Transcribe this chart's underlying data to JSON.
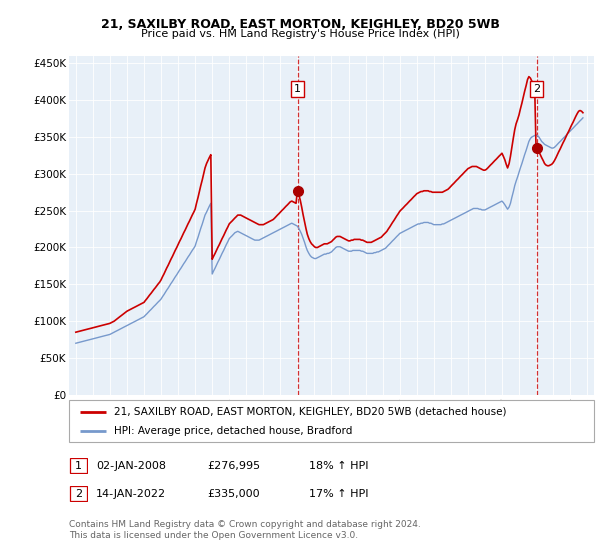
{
  "title": "21, SAXILBY ROAD, EAST MORTON, KEIGHLEY, BD20 5WB",
  "subtitle": "Price paid vs. HM Land Registry's House Price Index (HPI)",
  "ytick_labels": [
    "£0",
    "£50K",
    "£100K",
    "£150K",
    "£200K",
    "£250K",
    "£300K",
    "£350K",
    "£400K",
    "£450K"
  ],
  "yticks": [
    0,
    50000,
    100000,
    150000,
    200000,
    250000,
    300000,
    350000,
    400000,
    450000
  ],
  "xlim_start": 1994.6,
  "xlim_end": 2025.4,
  "ylim_bottom": 0,
  "ylim_top": 460000,
  "sale1_x": 2008.02,
  "sale1_y": 276995,
  "sale2_x": 2022.04,
  "sale2_y": 335000,
  "marker_color": "#aa0000",
  "line1_color": "#cc0000",
  "line2_color": "#7799cc",
  "bg_fill_color": "#e8f0f8",
  "vline_color": "#cc0000",
  "annotation1_label": "1",
  "annotation2_label": "2",
  "legend_line1": "21, SAXILBY ROAD, EAST MORTON, KEIGHLEY, BD20 5WB (detached house)",
  "legend_line2": "HPI: Average price, detached house, Bradford",
  "footer_line1": "Contains HM Land Registry data © Crown copyright and database right 2024.",
  "footer_line2": "This data is licensed under the Open Government Licence v3.0.",
  "table_row1": [
    "1",
    "02-JAN-2008",
    "£276,995",
    "18% ↑ HPI"
  ],
  "table_row2": [
    "2",
    "14-JAN-2022",
    "£335,000",
    "17% ↑ HPI"
  ],
  "hpi_data_x": [
    1995.0,
    1995.08,
    1995.17,
    1995.25,
    1995.33,
    1995.42,
    1995.5,
    1995.58,
    1995.67,
    1995.75,
    1995.83,
    1995.92,
    1996.0,
    1996.08,
    1996.17,
    1996.25,
    1996.33,
    1996.42,
    1996.5,
    1996.58,
    1996.67,
    1996.75,
    1996.83,
    1996.92,
    1997.0,
    1997.08,
    1997.17,
    1997.25,
    1997.33,
    1997.42,
    1997.5,
    1997.58,
    1997.67,
    1997.75,
    1997.83,
    1997.92,
    1998.0,
    1998.08,
    1998.17,
    1998.25,
    1998.33,
    1998.42,
    1998.5,
    1998.58,
    1998.67,
    1998.75,
    1998.83,
    1998.92,
    1999.0,
    1999.08,
    1999.17,
    1999.25,
    1999.33,
    1999.42,
    1999.5,
    1999.58,
    1999.67,
    1999.75,
    1999.83,
    1999.92,
    2000.0,
    2000.08,
    2000.17,
    2000.25,
    2000.33,
    2000.42,
    2000.5,
    2000.58,
    2000.67,
    2000.75,
    2000.83,
    2000.92,
    2001.0,
    2001.08,
    2001.17,
    2001.25,
    2001.33,
    2001.42,
    2001.5,
    2001.58,
    2001.67,
    2001.75,
    2001.83,
    2001.92,
    2002.0,
    2002.08,
    2002.17,
    2002.25,
    2002.33,
    2002.42,
    2002.5,
    2002.58,
    2002.67,
    2002.75,
    2002.83,
    2002.92,
    2003.0,
    2003.08,
    2003.17,
    2003.25,
    2003.33,
    2003.42,
    2003.5,
    2003.58,
    2003.67,
    2003.75,
    2003.83,
    2003.92,
    2004.0,
    2004.08,
    2004.17,
    2004.25,
    2004.33,
    2004.42,
    2004.5,
    2004.58,
    2004.67,
    2004.75,
    2004.83,
    2004.92,
    2005.0,
    2005.08,
    2005.17,
    2005.25,
    2005.33,
    2005.42,
    2005.5,
    2005.58,
    2005.67,
    2005.75,
    2005.83,
    2005.92,
    2006.0,
    2006.08,
    2006.17,
    2006.25,
    2006.33,
    2006.42,
    2006.5,
    2006.58,
    2006.67,
    2006.75,
    2006.83,
    2006.92,
    2007.0,
    2007.08,
    2007.17,
    2007.25,
    2007.33,
    2007.42,
    2007.5,
    2007.58,
    2007.67,
    2007.75,
    2007.83,
    2007.92,
    2008.0,
    2008.08,
    2008.17,
    2008.25,
    2008.33,
    2008.42,
    2008.5,
    2008.58,
    2008.67,
    2008.75,
    2008.83,
    2008.92,
    2009.0,
    2009.08,
    2009.17,
    2009.25,
    2009.33,
    2009.42,
    2009.5,
    2009.58,
    2009.67,
    2009.75,
    2009.83,
    2009.92,
    2010.0,
    2010.08,
    2010.17,
    2010.25,
    2010.33,
    2010.42,
    2010.5,
    2010.58,
    2010.67,
    2010.75,
    2010.83,
    2010.92,
    2011.0,
    2011.08,
    2011.17,
    2011.25,
    2011.33,
    2011.42,
    2011.5,
    2011.58,
    2011.67,
    2011.75,
    2011.83,
    2011.92,
    2012.0,
    2012.08,
    2012.17,
    2012.25,
    2012.33,
    2012.42,
    2012.5,
    2012.58,
    2012.67,
    2012.75,
    2012.83,
    2012.92,
    2013.0,
    2013.08,
    2013.17,
    2013.25,
    2013.33,
    2013.42,
    2013.5,
    2013.58,
    2013.67,
    2013.75,
    2013.83,
    2013.92,
    2014.0,
    2014.08,
    2014.17,
    2014.25,
    2014.33,
    2014.42,
    2014.5,
    2014.58,
    2014.67,
    2014.75,
    2014.83,
    2014.92,
    2015.0,
    2015.08,
    2015.17,
    2015.25,
    2015.33,
    2015.42,
    2015.5,
    2015.58,
    2015.67,
    2015.75,
    2015.83,
    2015.92,
    2016.0,
    2016.08,
    2016.17,
    2016.25,
    2016.33,
    2016.42,
    2016.5,
    2016.58,
    2016.67,
    2016.75,
    2016.83,
    2016.92,
    2017.0,
    2017.08,
    2017.17,
    2017.25,
    2017.33,
    2017.42,
    2017.5,
    2017.58,
    2017.67,
    2017.75,
    2017.83,
    2017.92,
    2018.0,
    2018.08,
    2018.17,
    2018.25,
    2018.33,
    2018.42,
    2018.5,
    2018.58,
    2018.67,
    2018.75,
    2018.83,
    2018.92,
    2019.0,
    2019.08,
    2019.17,
    2019.25,
    2019.33,
    2019.42,
    2019.5,
    2019.58,
    2019.67,
    2019.75,
    2019.83,
    2019.92,
    2020.0,
    2020.08,
    2020.17,
    2020.25,
    2020.33,
    2020.42,
    2020.5,
    2020.58,
    2020.67,
    2020.75,
    2020.83,
    2020.92,
    2021.0,
    2021.08,
    2021.17,
    2021.25,
    2021.33,
    2021.42,
    2021.5,
    2021.58,
    2021.67,
    2021.75,
    2021.83,
    2021.92,
    2022.0,
    2022.08,
    2022.17,
    2022.25,
    2022.33,
    2022.42,
    2022.5,
    2022.58,
    2022.67,
    2022.75,
    2022.83,
    2022.92,
    2023.0,
    2023.08,
    2023.17,
    2023.25,
    2023.33,
    2023.42,
    2023.5,
    2023.58,
    2023.67,
    2023.75,
    2023.83,
    2023.92,
    2024.0,
    2024.08,
    2024.17,
    2024.25,
    2024.33,
    2024.42,
    2024.5,
    2024.58,
    2024.67,
    2024.75
  ],
  "hpi_data_y": [
    70000,
    70500,
    71000,
    71500,
    72000,
    72500,
    73000,
    73500,
    74000,
    74500,
    75000,
    75500,
    76000,
    76500,
    77000,
    77500,
    78000,
    78500,
    79000,
    79500,
    80000,
    80500,
    81000,
    81500,
    82000,
    83000,
    84000,
    85000,
    86000,
    87000,
    88000,
    89000,
    90000,
    91000,
    92000,
    93000,
    94000,
    95000,
    96000,
    97000,
    98000,
    99000,
    100000,
    101000,
    102000,
    103000,
    104000,
    105000,
    106000,
    108000,
    110000,
    112000,
    114000,
    116000,
    118000,
    120000,
    122000,
    124000,
    126000,
    128000,
    130000,
    133000,
    136000,
    139000,
    142000,
    145000,
    148000,
    151000,
    154000,
    157000,
    160000,
    163000,
    166000,
    169000,
    172000,
    175000,
    178000,
    181000,
    184000,
    187000,
    190000,
    193000,
    196000,
    199000,
    202000,
    208000,
    214000,
    220000,
    226000,
    232000,
    238000,
    244000,
    248000,
    252000,
    256000,
    260000,
    164000,
    168000,
    172000,
    176000,
    180000,
    184000,
    188000,
    192000,
    196000,
    200000,
    204000,
    208000,
    212000,
    214000,
    216000,
    218000,
    220000,
    221000,
    222000,
    221000,
    220000,
    219000,
    218000,
    217000,
    216000,
    215000,
    214000,
    213000,
    212000,
    211000,
    210000,
    210000,
    210000,
    210000,
    211000,
    212000,
    213000,
    214000,
    215000,
    216000,
    217000,
    218000,
    219000,
    220000,
    221000,
    222000,
    223000,
    224000,
    225000,
    226000,
    227000,
    228000,
    229000,
    230000,
    231000,
    232000,
    233000,
    232000,
    231000,
    230000,
    229000,
    226000,
    222000,
    218000,
    213000,
    207000,
    201000,
    196000,
    192000,
    189000,
    187000,
    186000,
    185000,
    185000,
    186000,
    187000,
    188000,
    189000,
    190000,
    191000,
    191000,
    192000,
    192000,
    193000,
    194000,
    196000,
    198000,
    200000,
    201000,
    201000,
    201000,
    200000,
    199000,
    198000,
    197000,
    196000,
    195000,
    195000,
    195000,
    196000,
    196000,
    196000,
    196000,
    196000,
    196000,
    195000,
    195000,
    194000,
    193000,
    192000,
    192000,
    192000,
    192000,
    192000,
    193000,
    193000,
    194000,
    194000,
    195000,
    196000,
    197000,
    198000,
    199000,
    201000,
    203000,
    205000,
    207000,
    209000,
    211000,
    213000,
    215000,
    217000,
    219000,
    220000,
    221000,
    222000,
    223000,
    224000,
    225000,
    226000,
    227000,
    228000,
    229000,
    230000,
    231000,
    232000,
    232000,
    233000,
    233000,
    234000,
    234000,
    234000,
    234000,
    233000,
    233000,
    232000,
    231000,
    231000,
    231000,
    231000,
    231000,
    231000,
    232000,
    232000,
    233000,
    234000,
    235000,
    236000,
    237000,
    238000,
    239000,
    240000,
    241000,
    242000,
    243000,
    244000,
    245000,
    246000,
    247000,
    248000,
    249000,
    250000,
    251000,
    252000,
    253000,
    253000,
    253000,
    253000,
    252000,
    252000,
    251000,
    251000,
    251000,
    252000,
    253000,
    254000,
    255000,
    256000,
    257000,
    258000,
    259000,
    260000,
    261000,
    262000,
    263000,
    261000,
    258000,
    255000,
    252000,
    255000,
    260000,
    268000,
    276000,
    284000,
    290000,
    296000,
    302000,
    308000,
    314000,
    320000,
    326000,
    332000,
    338000,
    344000,
    348000,
    350000,
    351000,
    352000,
    353000,
    352000,
    350000,
    347000,
    344000,
    342000,
    340000,
    339000,
    338000,
    337000,
    336000,
    335000,
    335000,
    336000,
    338000,
    340000,
    342000,
    344000,
    346000,
    348000,
    350000,
    352000,
    354000,
    356000,
    358000,
    360000,
    362000,
    364000,
    366000,
    368000,
    370000,
    372000,
    374000,
    376000
  ],
  "price_data_x": [
    1995.0,
    1995.08,
    1995.17,
    1995.25,
    1995.33,
    1995.42,
    1995.5,
    1995.58,
    1995.67,
    1995.75,
    1995.83,
    1995.92,
    1996.0,
    1996.08,
    1996.17,
    1996.25,
    1996.33,
    1996.42,
    1996.5,
    1996.58,
    1996.67,
    1996.75,
    1996.83,
    1996.92,
    1997.0,
    1997.08,
    1997.17,
    1997.25,
    1997.33,
    1997.42,
    1997.5,
    1997.58,
    1997.67,
    1997.75,
    1997.83,
    1997.92,
    1998.0,
    1998.08,
    1998.17,
    1998.25,
    1998.33,
    1998.42,
    1998.5,
    1998.58,
    1998.67,
    1998.75,
    1998.83,
    1998.92,
    1999.0,
    1999.08,
    1999.17,
    1999.25,
    1999.33,
    1999.42,
    1999.5,
    1999.58,
    1999.67,
    1999.75,
    1999.83,
    1999.92,
    2000.0,
    2000.08,
    2000.17,
    2000.25,
    2000.33,
    2000.42,
    2000.5,
    2000.58,
    2000.67,
    2000.75,
    2000.83,
    2000.92,
    2001.0,
    2001.08,
    2001.17,
    2001.25,
    2001.33,
    2001.42,
    2001.5,
    2001.58,
    2001.67,
    2001.75,
    2001.83,
    2001.92,
    2002.0,
    2002.08,
    2002.17,
    2002.25,
    2002.33,
    2002.42,
    2002.5,
    2002.58,
    2002.67,
    2002.75,
    2002.83,
    2002.92,
    2003.0,
    2003.08,
    2003.17,
    2003.25,
    2003.33,
    2003.42,
    2003.5,
    2003.58,
    2003.67,
    2003.75,
    2003.83,
    2003.92,
    2004.0,
    2004.08,
    2004.17,
    2004.25,
    2004.33,
    2004.42,
    2004.5,
    2004.58,
    2004.67,
    2004.75,
    2004.83,
    2004.92,
    2005.0,
    2005.08,
    2005.17,
    2005.25,
    2005.33,
    2005.42,
    2005.5,
    2005.58,
    2005.67,
    2005.75,
    2005.83,
    2005.92,
    2006.0,
    2006.08,
    2006.17,
    2006.25,
    2006.33,
    2006.42,
    2006.5,
    2006.58,
    2006.67,
    2006.75,
    2006.83,
    2006.92,
    2007.0,
    2007.08,
    2007.17,
    2007.25,
    2007.33,
    2007.42,
    2007.5,
    2007.58,
    2007.67,
    2007.75,
    2007.83,
    2007.92,
    2008.0,
    2008.08,
    2008.17,
    2008.25,
    2008.33,
    2008.42,
    2008.5,
    2008.58,
    2008.67,
    2008.75,
    2008.83,
    2008.92,
    2009.0,
    2009.08,
    2009.17,
    2009.25,
    2009.33,
    2009.42,
    2009.5,
    2009.58,
    2009.67,
    2009.75,
    2009.83,
    2009.92,
    2010.0,
    2010.08,
    2010.17,
    2010.25,
    2010.33,
    2010.42,
    2010.5,
    2010.58,
    2010.67,
    2010.75,
    2010.83,
    2010.92,
    2011.0,
    2011.08,
    2011.17,
    2011.25,
    2011.33,
    2011.42,
    2011.5,
    2011.58,
    2011.67,
    2011.75,
    2011.83,
    2011.92,
    2012.0,
    2012.08,
    2012.17,
    2012.25,
    2012.33,
    2012.42,
    2012.5,
    2012.58,
    2012.67,
    2012.75,
    2012.83,
    2012.92,
    2013.0,
    2013.08,
    2013.17,
    2013.25,
    2013.33,
    2013.42,
    2013.5,
    2013.58,
    2013.67,
    2013.75,
    2013.83,
    2013.92,
    2014.0,
    2014.08,
    2014.17,
    2014.25,
    2014.33,
    2014.42,
    2014.5,
    2014.58,
    2014.67,
    2014.75,
    2014.83,
    2014.92,
    2015.0,
    2015.08,
    2015.17,
    2015.25,
    2015.33,
    2015.42,
    2015.5,
    2015.58,
    2015.67,
    2015.75,
    2015.83,
    2015.92,
    2016.0,
    2016.08,
    2016.17,
    2016.25,
    2016.33,
    2016.42,
    2016.5,
    2016.58,
    2016.67,
    2016.75,
    2016.83,
    2016.92,
    2017.0,
    2017.08,
    2017.17,
    2017.25,
    2017.33,
    2017.42,
    2017.5,
    2017.58,
    2017.67,
    2017.75,
    2017.83,
    2017.92,
    2018.0,
    2018.08,
    2018.17,
    2018.25,
    2018.33,
    2018.42,
    2018.5,
    2018.58,
    2018.67,
    2018.75,
    2018.83,
    2018.92,
    2019.0,
    2019.08,
    2019.17,
    2019.25,
    2019.33,
    2019.42,
    2019.5,
    2019.58,
    2019.67,
    2019.75,
    2019.83,
    2019.92,
    2020.0,
    2020.08,
    2020.17,
    2020.25,
    2020.33,
    2020.42,
    2020.5,
    2020.58,
    2020.67,
    2020.75,
    2020.83,
    2020.92,
    2021.0,
    2021.08,
    2021.17,
    2021.25,
    2021.33,
    2021.42,
    2021.5,
    2021.58,
    2021.67,
    2021.75,
    2021.83,
    2021.92,
    2022.0,
    2022.08,
    2022.17,
    2022.25,
    2022.33,
    2022.42,
    2022.5,
    2022.58,
    2022.67,
    2022.75,
    2022.83,
    2022.92,
    2023.0,
    2023.08,
    2023.17,
    2023.25,
    2023.33,
    2023.42,
    2023.5,
    2023.58,
    2023.67,
    2023.75,
    2023.83,
    2023.92,
    2024.0,
    2024.08,
    2024.17,
    2024.25,
    2024.33,
    2024.42,
    2024.5,
    2024.58,
    2024.67,
    2024.75
  ],
  "price_data_y": [
    85000,
    85500,
    86000,
    86500,
    87000,
    87500,
    88000,
    88500,
    89000,
    89500,
    90000,
    90500,
    91000,
    91500,
    92000,
    92500,
    93000,
    93500,
    94000,
    94500,
    95000,
    95500,
    96000,
    96500,
    97000,
    98000,
    99000,
    100000,
    101500,
    103000,
    104500,
    106000,
    107500,
    109000,
    110500,
    112000,
    113500,
    114500,
    115500,
    116500,
    117500,
    118500,
    119500,
    120500,
    121500,
    122500,
    123500,
    124500,
    125500,
    128000,
    130500,
    133000,
    135500,
    138000,
    140500,
    143000,
    145500,
    148000,
    150500,
    153000,
    156000,
    160000,
    164000,
    168000,
    172000,
    176000,
    180000,
    184000,
    188000,
    192000,
    196000,
    200000,
    204000,
    208000,
    212000,
    216000,
    220000,
    224000,
    228000,
    232000,
    236000,
    240000,
    244000,
    248000,
    252000,
    260000,
    268000,
    276000,
    284000,
    292000,
    300000,
    308000,
    314000,
    318000,
    322000,
    326000,
    184000,
    188000,
    192000,
    196000,
    200000,
    204000,
    208000,
    212000,
    216000,
    220000,
    224000,
    228000,
    232000,
    234000,
    236000,
    238000,
    240000,
    242000,
    244000,
    244000,
    244000,
    243000,
    242000,
    241000,
    240000,
    239000,
    238000,
    237000,
    236000,
    235000,
    234000,
    233000,
    232000,
    231000,
    231000,
    231000,
    231000,
    232000,
    233000,
    234000,
    235000,
    236000,
    237000,
    238000,
    240000,
    242000,
    244000,
    246000,
    248000,
    250000,
    252000,
    254000,
    256000,
    258000,
    260000,
    262000,
    263000,
    262000,
    261000,
    260000,
    277000,
    272000,
    264000,
    255000,
    245000,
    235000,
    226000,
    218000,
    212000,
    208000,
    205000,
    203000,
    201000,
    200000,
    200000,
    201000,
    202000,
    203000,
    204000,
    205000,
    205000,
    205000,
    206000,
    207000,
    208000,
    210000,
    212000,
    214000,
    215000,
    215000,
    215000,
    214000,
    213000,
    212000,
    211000,
    210000,
    209000,
    209000,
    210000,
    210000,
    211000,
    211000,
    211000,
    211000,
    211000,
    210000,
    210000,
    209000,
    208000,
    207000,
    207000,
    207000,
    207000,
    208000,
    209000,
    210000,
    211000,
    212000,
    213000,
    214000,
    216000,
    218000,
    220000,
    222000,
    225000,
    228000,
    231000,
    234000,
    237000,
    240000,
    243000,
    246000,
    249000,
    251000,
    253000,
    255000,
    257000,
    259000,
    261000,
    263000,
    265000,
    267000,
    269000,
    271000,
    273000,
    274000,
    275000,
    276000,
    276000,
    277000,
    277000,
    277000,
    277000,
    276000,
    276000,
    275000,
    275000,
    275000,
    275000,
    275000,
    275000,
    275000,
    275000,
    276000,
    277000,
    278000,
    279000,
    281000,
    283000,
    285000,
    287000,
    289000,
    291000,
    293000,
    295000,
    297000,
    299000,
    301000,
    303000,
    305000,
    307000,
    308000,
    309000,
    310000,
    310000,
    310000,
    310000,
    309000,
    308000,
    307000,
    306000,
    305000,
    305000,
    306000,
    308000,
    310000,
    312000,
    314000,
    316000,
    318000,
    320000,
    322000,
    324000,
    326000,
    328000,
    324000,
    319000,
    313000,
    308000,
    314000,
    324000,
    336000,
    349000,
    360000,
    368000,
    374000,
    380000,
    388000,
    396000,
    404000,
    412000,
    420000,
    428000,
    432000,
    430000,
    426000,
    422000,
    418000,
    335000,
    333000,
    330000,
    326000,
    322000,
    318000,
    314000,
    312000,
    311000,
    311000,
    312000,
    313000,
    315000,
    318000,
    322000,
    326000,
    330000,
    334000,
    338000,
    342000,
    346000,
    350000,
    354000,
    358000,
    362000,
    366000,
    370000,
    374000,
    378000,
    382000,
    385000,
    386000,
    385000,
    383000
  ]
}
